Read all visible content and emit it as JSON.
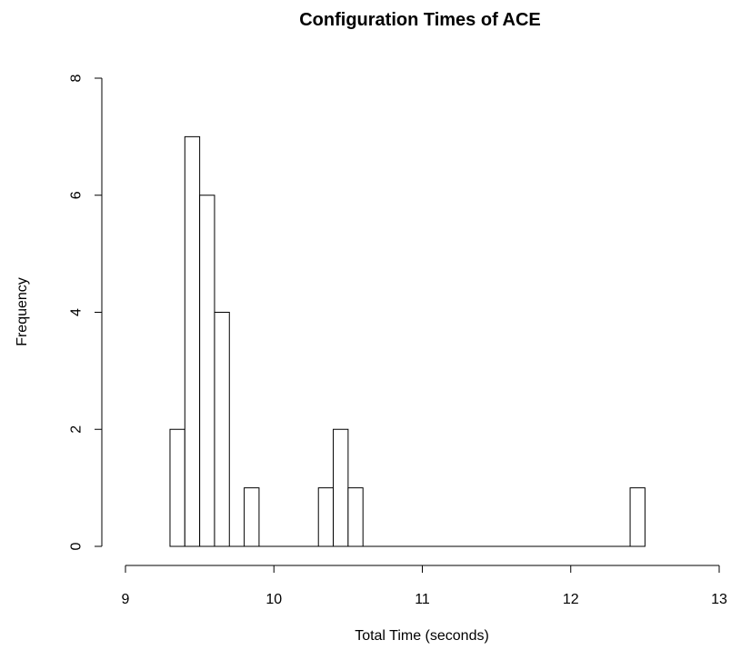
{
  "chart_data": {
    "type": "bar",
    "title": "Configuration Times of ACE",
    "xlabel": "Total Time (seconds)",
    "ylabel": "Frequency",
    "xlim": [
      9,
      13
    ],
    "ylim": [
      0,
      8
    ],
    "x_ticks": [
      "9",
      "10",
      "11",
      "12",
      "13"
    ],
    "y_ticks": [
      "0",
      "2",
      "4",
      "6",
      "8"
    ],
    "bin_width": 0.1,
    "bins": [
      {
        "start": 9.3,
        "end": 9.4,
        "count": 2
      },
      {
        "start": 9.4,
        "end": 9.5,
        "count": 7
      },
      {
        "start": 9.5,
        "end": 9.6,
        "count": 6
      },
      {
        "start": 9.6,
        "end": 9.7,
        "count": 4
      },
      {
        "start": 9.8,
        "end": 9.9,
        "count": 1
      },
      {
        "start": 10.3,
        "end": 10.4,
        "count": 1
      },
      {
        "start": 10.4,
        "end": 10.5,
        "count": 2
      },
      {
        "start": 10.5,
        "end": 10.6,
        "count": 1
      },
      {
        "start": 12.4,
        "end": 12.5,
        "count": 1
      }
    ],
    "grid": false,
    "bar_fill": "#ffffff",
    "bar_stroke": "#000000"
  }
}
